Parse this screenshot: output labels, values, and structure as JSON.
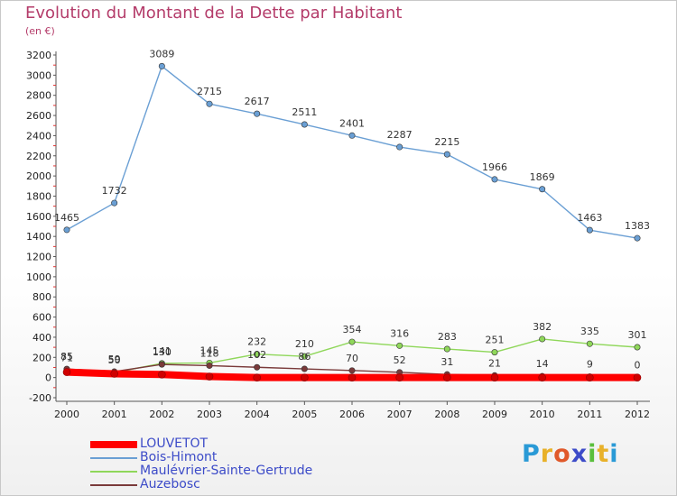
{
  "title": "Evolution du Montant de la Dette par Habitant",
  "unit_label": "(en €)",
  "logo": {
    "text": "Proxiti",
    "letters": [
      {
        "ch": "P",
        "color": "#2a9ad6"
      },
      {
        "ch": "r",
        "color": "#e8b12a"
      },
      {
        "ch": "o",
        "color": "#e0592a"
      },
      {
        "ch": "x",
        "color": "#3c4bc8"
      },
      {
        "ch": "i",
        "color": "#5abf3c"
      },
      {
        "ch": "t",
        "color": "#e8b12a"
      },
      {
        "ch": "i",
        "color": "#2a9ad6"
      }
    ]
  },
  "chart_data": {
    "type": "line",
    "title": "Evolution du Montant de la Dette par Habitant",
    "ylabel": "(en €)",
    "x": [
      "2000",
      "2001",
      "2002",
      "2003",
      "2004",
      "2005",
      "2006",
      "2007",
      "2008",
      "2009",
      "2010",
      "2011",
      "2012"
    ],
    "ylim": [
      -200,
      3200
    ],
    "yticks": [
      -200,
      0,
      200,
      400,
      600,
      800,
      1000,
      1200,
      1400,
      1600,
      1800,
      2000,
      2200,
      2400,
      2600,
      2800,
      3000,
      3200
    ],
    "grid": false,
    "legend_position": "bottom-left",
    "series": [
      {
        "name": "LOUVETOT",
        "color": "#ff0000",
        "values": [
          54,
          37,
          30,
          10,
          0,
          0,
          0,
          0,
          0,
          0,
          0,
          0,
          0
        ],
        "labels_shown": false
      },
      {
        "name": "Bois-Himont",
        "color": "#6a9fd4",
        "values": [
          1465,
          1732,
          3089,
          2715,
          2617,
          2511,
          2401,
          2287,
          2215,
          1966,
          1869,
          1463,
          1383
        ],
        "labels_shown": true
      },
      {
        "name": "Maulévrier-Sainte-Gertrude",
        "color": "#8fd75a",
        "values": [
          71,
          50,
          141,
          145,
          232,
          210,
          354,
          316,
          283,
          251,
          382,
          335,
          301
        ],
        "labels_shown": true
      },
      {
        "name": "Auzebosc",
        "color": "#7a3a3a",
        "values": [
          85,
          59,
          130,
          118,
          102,
          86,
          70,
          52,
          31,
          21,
          14,
          9,
          0
        ],
        "labels_shown": true
      }
    ]
  }
}
